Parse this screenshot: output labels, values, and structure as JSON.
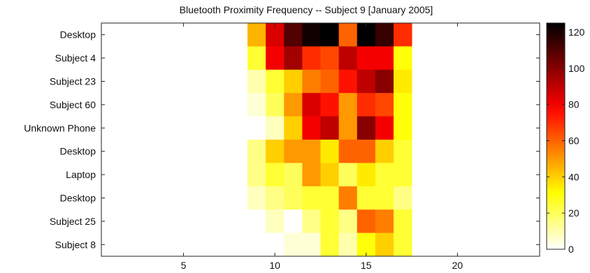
{
  "chart_data": {
    "type": "heatmap",
    "title": "Bluetooth Proximity Frequency -- Subject 9 [January 2005]",
    "xlabel": "",
    "ylabel": "",
    "rows": [
      "Desktop",
      "Subject 4",
      "Subject 23",
      "Subject 60",
      "Unknown Phone",
      "Desktop",
      "Laptop",
      "Desktop",
      "Subject 25",
      "Subject 8"
    ],
    "xlim": [
      0.5,
      24.5
    ],
    "x_ticks": [
      5,
      10,
      15,
      20
    ],
    "columns": [
      9,
      10,
      11,
      12,
      13,
      14,
      15,
      16,
      17
    ],
    "values": [
      [
        45,
        85,
        110,
        122,
        125,
        60,
        125,
        115,
        70
      ],
      [
        25,
        80,
        95,
        70,
        65,
        90,
        80,
        80,
        30
      ],
      [
        10,
        25,
        40,
        55,
        60,
        75,
        90,
        100,
        35
      ],
      [
        5,
        20,
        50,
        85,
        75,
        50,
        70,
        65,
        30
      ],
      [
        0,
        8,
        40,
        80,
        90,
        50,
        100,
        80,
        30
      ],
      [
        15,
        40,
        50,
        50,
        35,
        60,
        60,
        40,
        25
      ],
      [
        15,
        25,
        20,
        50,
        40,
        20,
        35,
        25,
        25
      ],
      [
        8,
        15,
        20,
        25,
        25,
        55,
        25,
        25,
        15
      ],
      [
        0,
        8,
        0,
        15,
        25,
        15,
        60,
        55,
        25
      ],
      [
        0,
        0,
        5,
        5,
        25,
        10,
        30,
        40,
        25
      ]
    ],
    "colorbar": {
      "min": 0,
      "max": 125,
      "ticks": [
        0,
        20,
        40,
        60,
        80,
        100,
        120
      ],
      "colormap": "hot (reversed)"
    },
    "grid": false,
    "legend": "colorbar-right"
  }
}
